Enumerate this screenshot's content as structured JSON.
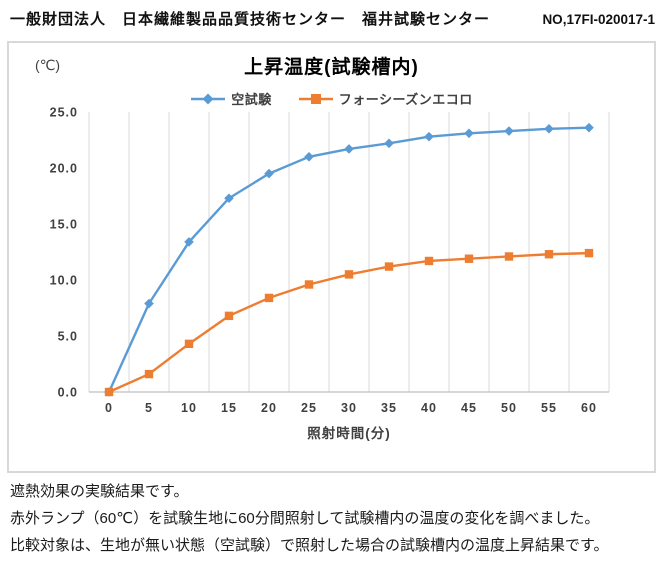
{
  "header": {
    "organization": "一般財団法人　日本繊維製品品質技術センター　福井試験センター",
    "report_no": "NO,17FI-020017-1"
  },
  "chart": {
    "unit_label": "(℃)",
    "title": "上昇温度(試験槽内)"
  },
  "chart_data": {
    "type": "line",
    "title": "上昇温度(試験槽内)",
    "x": [
      0,
      5,
      10,
      15,
      20,
      25,
      30,
      35,
      40,
      45,
      50,
      55,
      60
    ],
    "series": [
      {
        "name": "空試験",
        "color": "#5B9BD5",
        "marker": "diamond",
        "values": [
          0.0,
          7.9,
          13.4,
          17.3,
          19.5,
          21.0,
          21.7,
          22.2,
          22.8,
          23.1,
          23.3,
          23.5,
          23.6
        ]
      },
      {
        "name": "フォーシーズンエコロ",
        "color": "#ED7D31",
        "marker": "square",
        "values": [
          0.0,
          1.6,
          4.3,
          6.8,
          8.4,
          9.6,
          10.5,
          11.2,
          11.7,
          11.9,
          12.1,
          12.3,
          12.4
        ]
      }
    ],
    "xlabel": "照射時間(分)",
    "ylabel": "(℃)",
    "ylim": [
      0,
      25
    ],
    "ytick_step": 5,
    "ytick_format_decimals": 1,
    "legend_position": "top",
    "grid": "vertical-only",
    "colors": {
      "gridline": "#D9D9D9",
      "axis_line": "#BFBFBF",
      "tick_label": "#404040"
    }
  },
  "notes": {
    "line1": "遮熱効果の実験結果です。",
    "line2": "赤外ランプ（60℃）を試験生地に60分間照射して試験槽内の温度の変化を調べました。",
    "line3": "比較対象は、生地が無い状態（空試験）で照射した場合の試験槽内の温度上昇結果です。"
  }
}
